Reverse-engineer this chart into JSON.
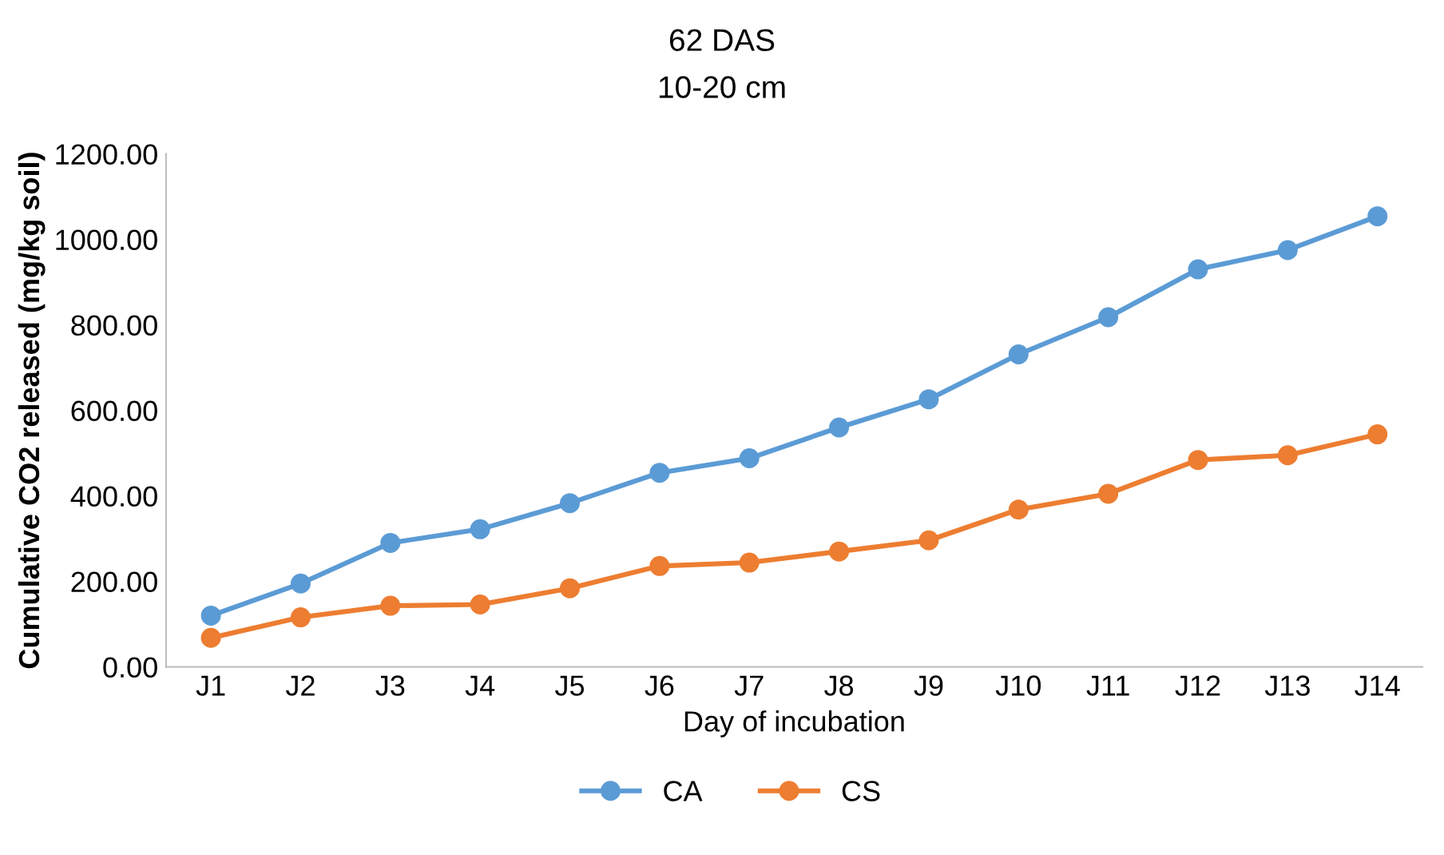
{
  "chart_data": {
    "type": "line",
    "title": "62 DAS",
    "subtitle": "10-20 cm",
    "xlabel": "Day of incubation",
    "ylabel": "Cumulative CO2 released (mg/kg soil)",
    "categories": [
      "J1",
      "J2",
      "J3",
      "J4",
      "J5",
      "J6",
      "J7",
      "J8",
      "J9",
      "J10",
      "J11",
      "J12",
      "J13",
      "J14"
    ],
    "series": [
      {
        "name": "CA",
        "color": "#5b9bd5",
        "values": [
          120,
          195,
          290,
          322,
          383,
          454,
          488,
          560,
          626,
          731,
          818,
          930,
          975,
          1054
        ]
      },
      {
        "name": "CS",
        "color": "#ed7d31",
        "values": [
          68,
          116,
          143,
          146,
          184,
          236,
          244,
          270,
          296,
          368,
          405,
          484,
          495,
          544
        ]
      }
    ],
    "ylim": [
      0,
      1200
    ],
    "yticks": [
      {
        "value": 0,
        "label": "0.00"
      },
      {
        "value": 200,
        "label": "200.00"
      },
      {
        "value": 400,
        "label": "400.00"
      },
      {
        "value": 600,
        "label": "600.00"
      },
      {
        "value": 800,
        "label": "800.00"
      },
      {
        "value": 1000,
        "label": "1000.00"
      },
      {
        "value": 1200,
        "label": "1200.00"
      }
    ],
    "grid": false,
    "legend": "bottom",
    "marker": "circle",
    "line_style": "solid"
  }
}
